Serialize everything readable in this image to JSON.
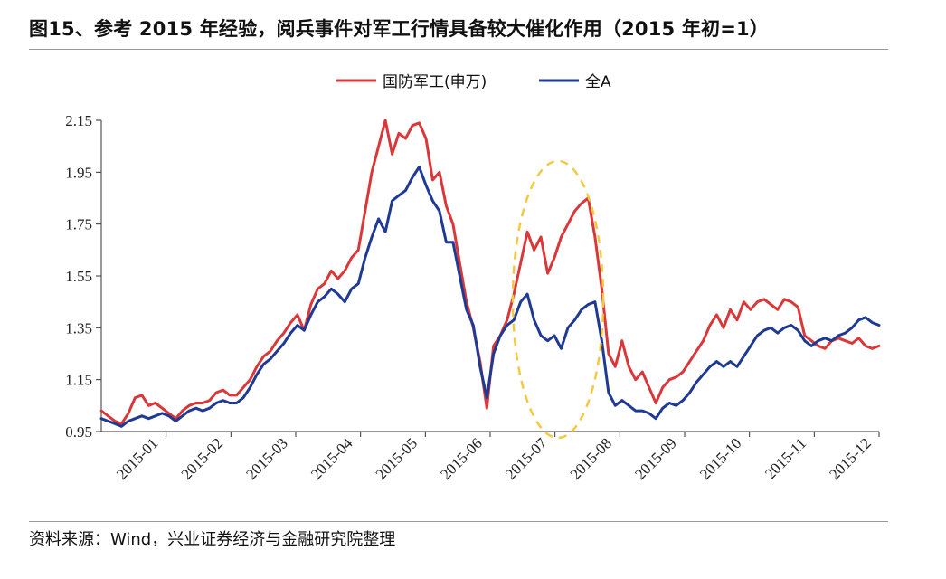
{
  "title": "图15、参考 2015 年经验，阅兵事件对军工行情具备较大催化作用（2015 年初=1）",
  "source": "资料来源：Wind，兴业证券经济与金融研究院整理",
  "chart_data": {
    "type": "line",
    "ylim": [
      0.95,
      2.15
    ],
    "yticks": [
      "2.15",
      "1.95",
      "1.75",
      "1.55",
      "1.35",
      "1.15",
      "0.95"
    ],
    "xticks": [
      "2015-01",
      "2015-02",
      "2015-03",
      "2015-04",
      "2015-05",
      "2015-06",
      "2015-07",
      "2015-08",
      "2015-09",
      "2015-10",
      "2015-11",
      "2015-12"
    ],
    "legend_position": "top-center",
    "annotation": "dashed yellow ellipse highlighting 2015-07 to 2015-08",
    "series": [
      {
        "name": "国防军工(申万)",
        "color": "#d9383a",
        "values": [
          1.03,
          1.01,
          0.99,
          0.98,
          1.02,
          1.08,
          1.09,
          1.05,
          1.06,
          1.04,
          1.02,
          1.0,
          1.03,
          1.05,
          1.06,
          1.06,
          1.07,
          1.1,
          1.11,
          1.09,
          1.09,
          1.12,
          1.15,
          1.2,
          1.24,
          1.26,
          1.3,
          1.33,
          1.37,
          1.4,
          1.34,
          1.44,
          1.5,
          1.52,
          1.57,
          1.54,
          1.57,
          1.62,
          1.65,
          1.8,
          1.95,
          2.05,
          2.18,
          2.02,
          2.1,
          2.08,
          2.13,
          2.14,
          2.08,
          1.92,
          1.95,
          1.82,
          1.75,
          1.6,
          1.45,
          1.35,
          1.22,
          1.04,
          1.28,
          1.32,
          1.38,
          1.48,
          1.6,
          1.72,
          1.65,
          1.7,
          1.56,
          1.62,
          1.7,
          1.75,
          1.8,
          1.83,
          1.85,
          1.7,
          1.5,
          1.25,
          1.2,
          1.3,
          1.2,
          1.15,
          1.18,
          1.12,
          1.06,
          1.12,
          1.15,
          1.16,
          1.18,
          1.22,
          1.26,
          1.3,
          1.36,
          1.4,
          1.35,
          1.42,
          1.38,
          1.45,
          1.42,
          1.45,
          1.46,
          1.44,
          1.42,
          1.46,
          1.45,
          1.43,
          1.32,
          1.3,
          1.28,
          1.27,
          1.3,
          1.31,
          1.3,
          1.29,
          1.31,
          1.28,
          1.27,
          1.28
        ]
      },
      {
        "name": "全A",
        "color": "#1f3a93",
        "values": [
          1.0,
          0.99,
          0.98,
          0.97,
          0.99,
          1.0,
          1.01,
          1.0,
          1.01,
          1.02,
          1.01,
          0.99,
          1.01,
          1.03,
          1.04,
          1.03,
          1.04,
          1.06,
          1.07,
          1.06,
          1.06,
          1.08,
          1.12,
          1.17,
          1.21,
          1.23,
          1.26,
          1.29,
          1.33,
          1.36,
          1.34,
          1.4,
          1.45,
          1.47,
          1.5,
          1.48,
          1.45,
          1.5,
          1.52,
          1.62,
          1.7,
          1.77,
          1.72,
          1.84,
          1.86,
          1.88,
          1.93,
          1.97,
          1.9,
          1.84,
          1.8,
          1.68,
          1.68,
          1.55,
          1.42,
          1.36,
          1.2,
          1.08,
          1.25,
          1.32,
          1.36,
          1.38,
          1.45,
          1.48,
          1.38,
          1.32,
          1.3,
          1.32,
          1.27,
          1.35,
          1.38,
          1.42,
          1.44,
          1.45,
          1.3,
          1.1,
          1.05,
          1.07,
          1.05,
          1.03,
          1.03,
          1.02,
          1.0,
          1.04,
          1.06,
          1.05,
          1.07,
          1.1,
          1.14,
          1.17,
          1.2,
          1.22,
          1.2,
          1.22,
          1.2,
          1.24,
          1.28,
          1.32,
          1.34,
          1.35,
          1.33,
          1.35,
          1.36,
          1.34,
          1.3,
          1.28,
          1.3,
          1.31,
          1.3,
          1.32,
          1.33,
          1.35,
          1.38,
          1.39,
          1.37,
          1.36
        ]
      }
    ]
  }
}
